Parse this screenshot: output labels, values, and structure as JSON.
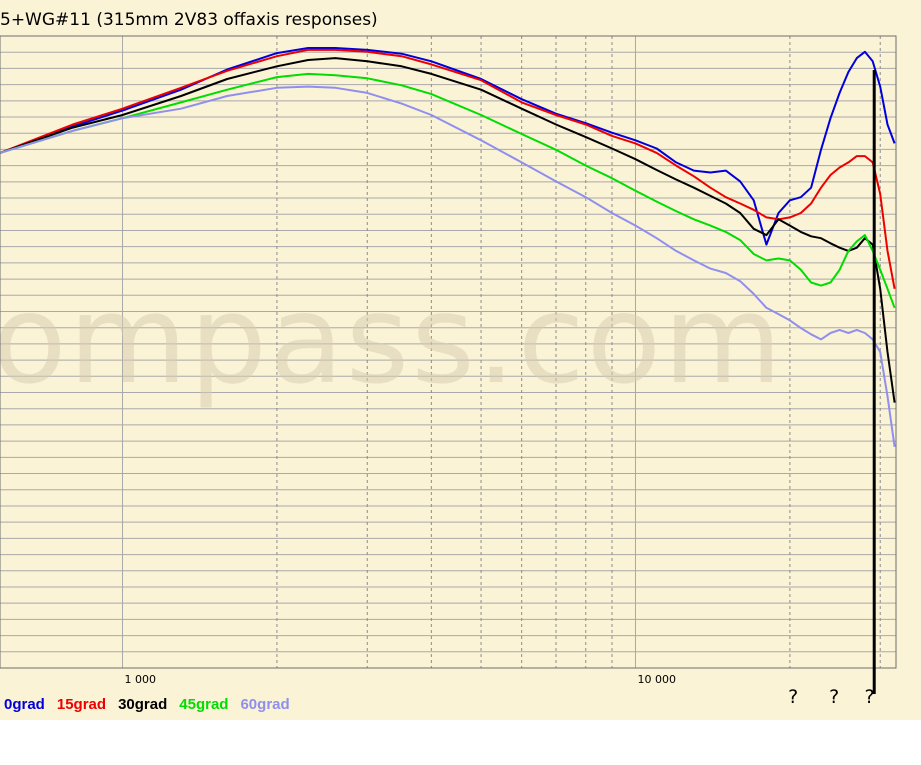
{
  "chart_data": {
    "type": "line",
    "title": "5+WG#11 (315mm 2V83 offaxis responses)",
    "watermark": "ompass.com",
    "x_scale": "log",
    "xlim": [
      577,
      32200
    ],
    "ylim": [
      0,
      1
    ],
    "grid": true,
    "x_tick_labels": [
      {
        "value": 1000,
        "label": "1 000"
      },
      {
        "value": 10000,
        "label": "10 000"
      }
    ],
    "x_gridlines_solid": [
      1000,
      10000
    ],
    "x_gridlines_dashed": [
      2000,
      3000,
      4000,
      5000,
      6000,
      7000,
      8000,
      9000,
      20000,
      30000
    ],
    "legend_position": "bottom-left",
    "colors": {
      "background": "#fbf3d6",
      "grid_solid": "#a9a9a9",
      "grid_dashed": "#8c8c8c",
      "plot_border": "#6e6e6e"
    },
    "series": [
      {
        "name": "0grad",
        "color": "#0000dd",
        "x": [
          577,
          800,
          1000,
          1300,
          1600,
          2000,
          2300,
          2600,
          3000,
          3500,
          4000,
          5000,
          6000,
          7000,
          8000,
          9000,
          10000,
          11000,
          12000,
          13000,
          14000,
          15000,
          16000,
          17000,
          18000,
          19000,
          20000,
          21000,
          22000,
          23000,
          24000,
          25000,
          26000,
          27000,
          28000,
          29000,
          30000,
          31000,
          32000
        ],
        "y": [
          0.815,
          0.857,
          0.882,
          0.915,
          0.947,
          0.973,
          0.981,
          0.981,
          0.978,
          0.972,
          0.96,
          0.932,
          0.9,
          0.877,
          0.862,
          0.847,
          0.835,
          0.822,
          0.8,
          0.787,
          0.784,
          0.787,
          0.77,
          0.74,
          0.67,
          0.72,
          0.74,
          0.745,
          0.76,
          0.82,
          0.87,
          0.91,
          0.943,
          0.965,
          0.975,
          0.96,
          0.92,
          0.86,
          0.83
        ]
      },
      {
        "name": "15grad",
        "color": "#ee0000",
        "x": [
          577,
          800,
          1000,
          1300,
          1600,
          2000,
          2300,
          2600,
          3000,
          3500,
          4000,
          5000,
          6000,
          7000,
          8000,
          9000,
          10000,
          11000,
          12000,
          13000,
          14000,
          15000,
          16000,
          17000,
          18000,
          19000,
          20000,
          21000,
          22000,
          23000,
          24000,
          25000,
          26000,
          27000,
          28000,
          29000,
          30000,
          31000,
          32000
        ],
        "y": [
          0.815,
          0.86,
          0.885,
          0.918,
          0.945,
          0.968,
          0.978,
          0.978,
          0.975,
          0.968,
          0.955,
          0.93,
          0.895,
          0.875,
          0.86,
          0.842,
          0.83,
          0.815,
          0.795,
          0.778,
          0.76,
          0.745,
          0.735,
          0.725,
          0.713,
          0.71,
          0.713,
          0.72,
          0.735,
          0.76,
          0.78,
          0.792,
          0.8,
          0.81,
          0.81,
          0.8,
          0.75,
          0.66,
          0.6
        ]
      },
      {
        "name": "30grad",
        "color": "#000000",
        "x": [
          577,
          800,
          1000,
          1300,
          1600,
          2000,
          2300,
          2600,
          3000,
          3500,
          4000,
          5000,
          6000,
          7000,
          8000,
          9000,
          10000,
          11000,
          12000,
          13000,
          14000,
          15000,
          16000,
          17000,
          18000,
          19000,
          20000,
          21000,
          22000,
          23000,
          24000,
          25000,
          26000,
          27000,
          28000,
          29000,
          30000,
          31000,
          32000
        ],
        "y": [
          0.815,
          0.855,
          0.875,
          0.905,
          0.932,
          0.952,
          0.962,
          0.965,
          0.96,
          0.952,
          0.94,
          0.915,
          0.885,
          0.86,
          0.84,
          0.822,
          0.805,
          0.788,
          0.773,
          0.76,
          0.747,
          0.735,
          0.72,
          0.695,
          0.685,
          0.71,
          0.7,
          0.69,
          0.683,
          0.68,
          0.672,
          0.665,
          0.66,
          0.665,
          0.68,
          0.67,
          0.6,
          0.5,
          0.42
        ]
      },
      {
        "name": "45grad",
        "color": "#00dd00",
        "x": [
          577,
          800,
          1000,
          1300,
          1600,
          2000,
          2300,
          2600,
          3000,
          3500,
          4000,
          5000,
          6000,
          7000,
          8000,
          9000,
          10000,
          11000,
          12000,
          13000,
          14000,
          15000,
          16000,
          17000,
          18000,
          19000,
          20000,
          21000,
          22000,
          23000,
          24000,
          25000,
          26000,
          27000,
          28000,
          29000,
          30000,
          31000,
          32000
        ],
        "y": [
          0.815,
          0.85,
          0.87,
          0.895,
          0.915,
          0.935,
          0.94,
          0.938,
          0.933,
          0.922,
          0.908,
          0.875,
          0.845,
          0.82,
          0.795,
          0.775,
          0.755,
          0.738,
          0.723,
          0.71,
          0.7,
          0.69,
          0.677,
          0.655,
          0.645,
          0.648,
          0.645,
          0.63,
          0.61,
          0.605,
          0.61,
          0.63,
          0.66,
          0.675,
          0.685,
          0.66,
          0.63,
          0.6,
          0.57
        ]
      },
      {
        "name": "60grad",
        "color": "#8f8fee",
        "x": [
          577,
          800,
          1000,
          1300,
          1600,
          2000,
          2300,
          2600,
          3000,
          3500,
          4000,
          5000,
          6000,
          7000,
          8000,
          9000,
          10000,
          11000,
          12000,
          13000,
          14000,
          15000,
          16000,
          17000,
          18000,
          19000,
          20000,
          21000,
          22000,
          23000,
          24000,
          25000,
          26000,
          27000,
          28000,
          29000,
          30000,
          31000,
          32000
        ],
        "y": [
          0.815,
          0.85,
          0.87,
          0.885,
          0.905,
          0.918,
          0.92,
          0.918,
          0.91,
          0.893,
          0.875,
          0.835,
          0.8,
          0.77,
          0.745,
          0.72,
          0.7,
          0.68,
          0.66,
          0.645,
          0.632,
          0.625,
          0.612,
          0.592,
          0.57,
          0.56,
          0.55,
          0.538,
          0.528,
          0.52,
          0.53,
          0.535,
          0.53,
          0.535,
          0.53,
          0.52,
          0.5,
          0.43,
          0.35
        ]
      }
    ],
    "marker_line": {
      "x": 29200
    },
    "annotations": [
      {
        "text": "?",
        "x": 20300
      },
      {
        "text": "?",
        "x": 24400
      },
      {
        "text": "?",
        "x": 28600
      }
    ]
  }
}
